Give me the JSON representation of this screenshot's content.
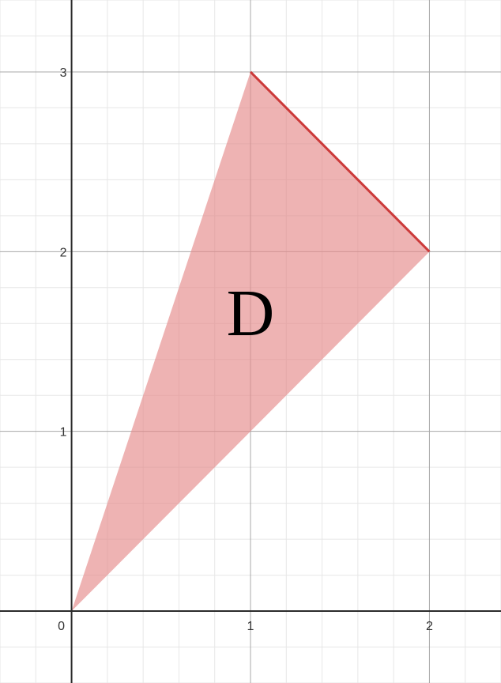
{
  "graph": {
    "x_range": [
      -0.4,
      2.4
    ],
    "y_range": [
      -0.4,
      3.4
    ],
    "minor_step": 0.2,
    "major_step": 1,
    "x_ticks": [
      {
        "value": 0,
        "label": "0"
      },
      {
        "value": 1,
        "label": "1"
      },
      {
        "value": 2,
        "label": "2"
      }
    ],
    "y_ticks": [
      {
        "value": 1,
        "label": "1"
      },
      {
        "value": 2,
        "label": "2"
      },
      {
        "value": 3,
        "label": "3"
      }
    ],
    "region": {
      "name": "D",
      "vertices": [
        [
          0,
          0
        ],
        [
          1,
          3
        ],
        [
          2,
          2
        ]
      ],
      "fill_color": "#e58a8a",
      "fill_opacity": 0.65,
      "highlighted_edge": [
        [
          1,
          3
        ],
        [
          2,
          2
        ]
      ],
      "edge_color": "#cc3a3a"
    }
  }
}
